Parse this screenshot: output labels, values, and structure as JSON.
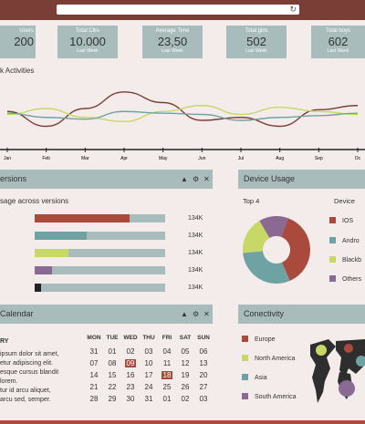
{
  "stats": [
    {
      "label": "Users",
      "value": "200",
      "sub": ""
    },
    {
      "label": "Total Clks",
      "value": "10.000",
      "sub": "Last Week"
    },
    {
      "label": "Average Time",
      "value": "23,50",
      "sub": "Last Week"
    },
    {
      "label": "Total girls",
      "value": "502",
      "sub": "Last Week"
    },
    {
      "label": "Total boys",
      "value": "602",
      "sub": "Last Week"
    }
  ],
  "activities_title": "k Activities",
  "chart_data": {
    "type": "line",
    "x": [
      "Jan",
      "Feb",
      "Mar",
      "Apr",
      "May",
      "Jun",
      "Jul",
      "Aug",
      "Sep",
      "Oc"
    ],
    "series": [
      {
        "color": "#7a3e36",
        "values": [
          55,
          30,
          60,
          88,
          70,
          40,
          45,
          30,
          58,
          65
        ]
      },
      {
        "color": "#c7d866",
        "values": [
          50,
          60,
          45,
          38,
          55,
          65,
          50,
          62,
          55,
          50
        ]
      },
      {
        "color": "#6fa3a3",
        "values": [
          52,
          45,
          42,
          55,
          52,
          50,
          40,
          45,
          48,
          52
        ]
      }
    ],
    "ylim": [
      0,
      100
    ]
  },
  "versions": {
    "title": "ersions",
    "subtitle": "sage across versions",
    "bars": [
      {
        "value": 0.73,
        "label": "134K",
        "color": "#a94a3c"
      },
      {
        "value": 0.4,
        "label": "134K",
        "color": "#6fa3a3"
      },
      {
        "value": 0.26,
        "label": "134K",
        "color": "#c7d866"
      },
      {
        "value": 0.13,
        "label": "134K",
        "color": "#8a6a93"
      },
      {
        "value": 0.05,
        "label": "134K",
        "color": "#222"
      }
    ]
  },
  "device": {
    "title": "Device Usage",
    "top": "Top 4",
    "col": "Device",
    "items": [
      {
        "name": "IOS",
        "color": "#a94a3c"
      },
      {
        "name": "Andro",
        "color": "#6fa3a3"
      },
      {
        "name": "Blackb",
        "color": "#c7d866"
      },
      {
        "name": "Others",
        "color": "#8a6a93"
      }
    ]
  },
  "calendar": {
    "title": "Calendar",
    "heading": "RY",
    "lines": [
      "ipsum dolor sit amet,",
      "etur adipiscing elit.",
      "esque cursus blandit",
      "lorem.",
      "tur id arcu aliquet,",
      "arcu sed, semper."
    ],
    "days": [
      "MON",
      "TUE",
      "WED",
      "THU",
      "FRI",
      "SAT",
      "SUN"
    ],
    "weeks": [
      [
        "31",
        "01",
        "02",
        "03",
        "04",
        "05",
        "06"
      ],
      [
        "07",
        "08",
        "09",
        "10",
        "11",
        "12",
        "13"
      ],
      [
        "14",
        "15",
        "16",
        "17",
        "18",
        "19",
        "20"
      ],
      [
        "21",
        "22",
        "23",
        "24",
        "25",
        "26",
        "27"
      ],
      [
        "28",
        "29",
        "30",
        "31",
        "01",
        "02",
        "03"
      ]
    ]
  },
  "connectivity": {
    "title": "Conectivity",
    "items": [
      {
        "name": "Europe",
        "color": "#a94a3c"
      },
      {
        "name": "North America",
        "color": "#c7d866"
      },
      {
        "name": "Asia",
        "color": "#6fa3a3"
      },
      {
        "name": "South America",
        "color": "#8a6a93"
      }
    ]
  }
}
